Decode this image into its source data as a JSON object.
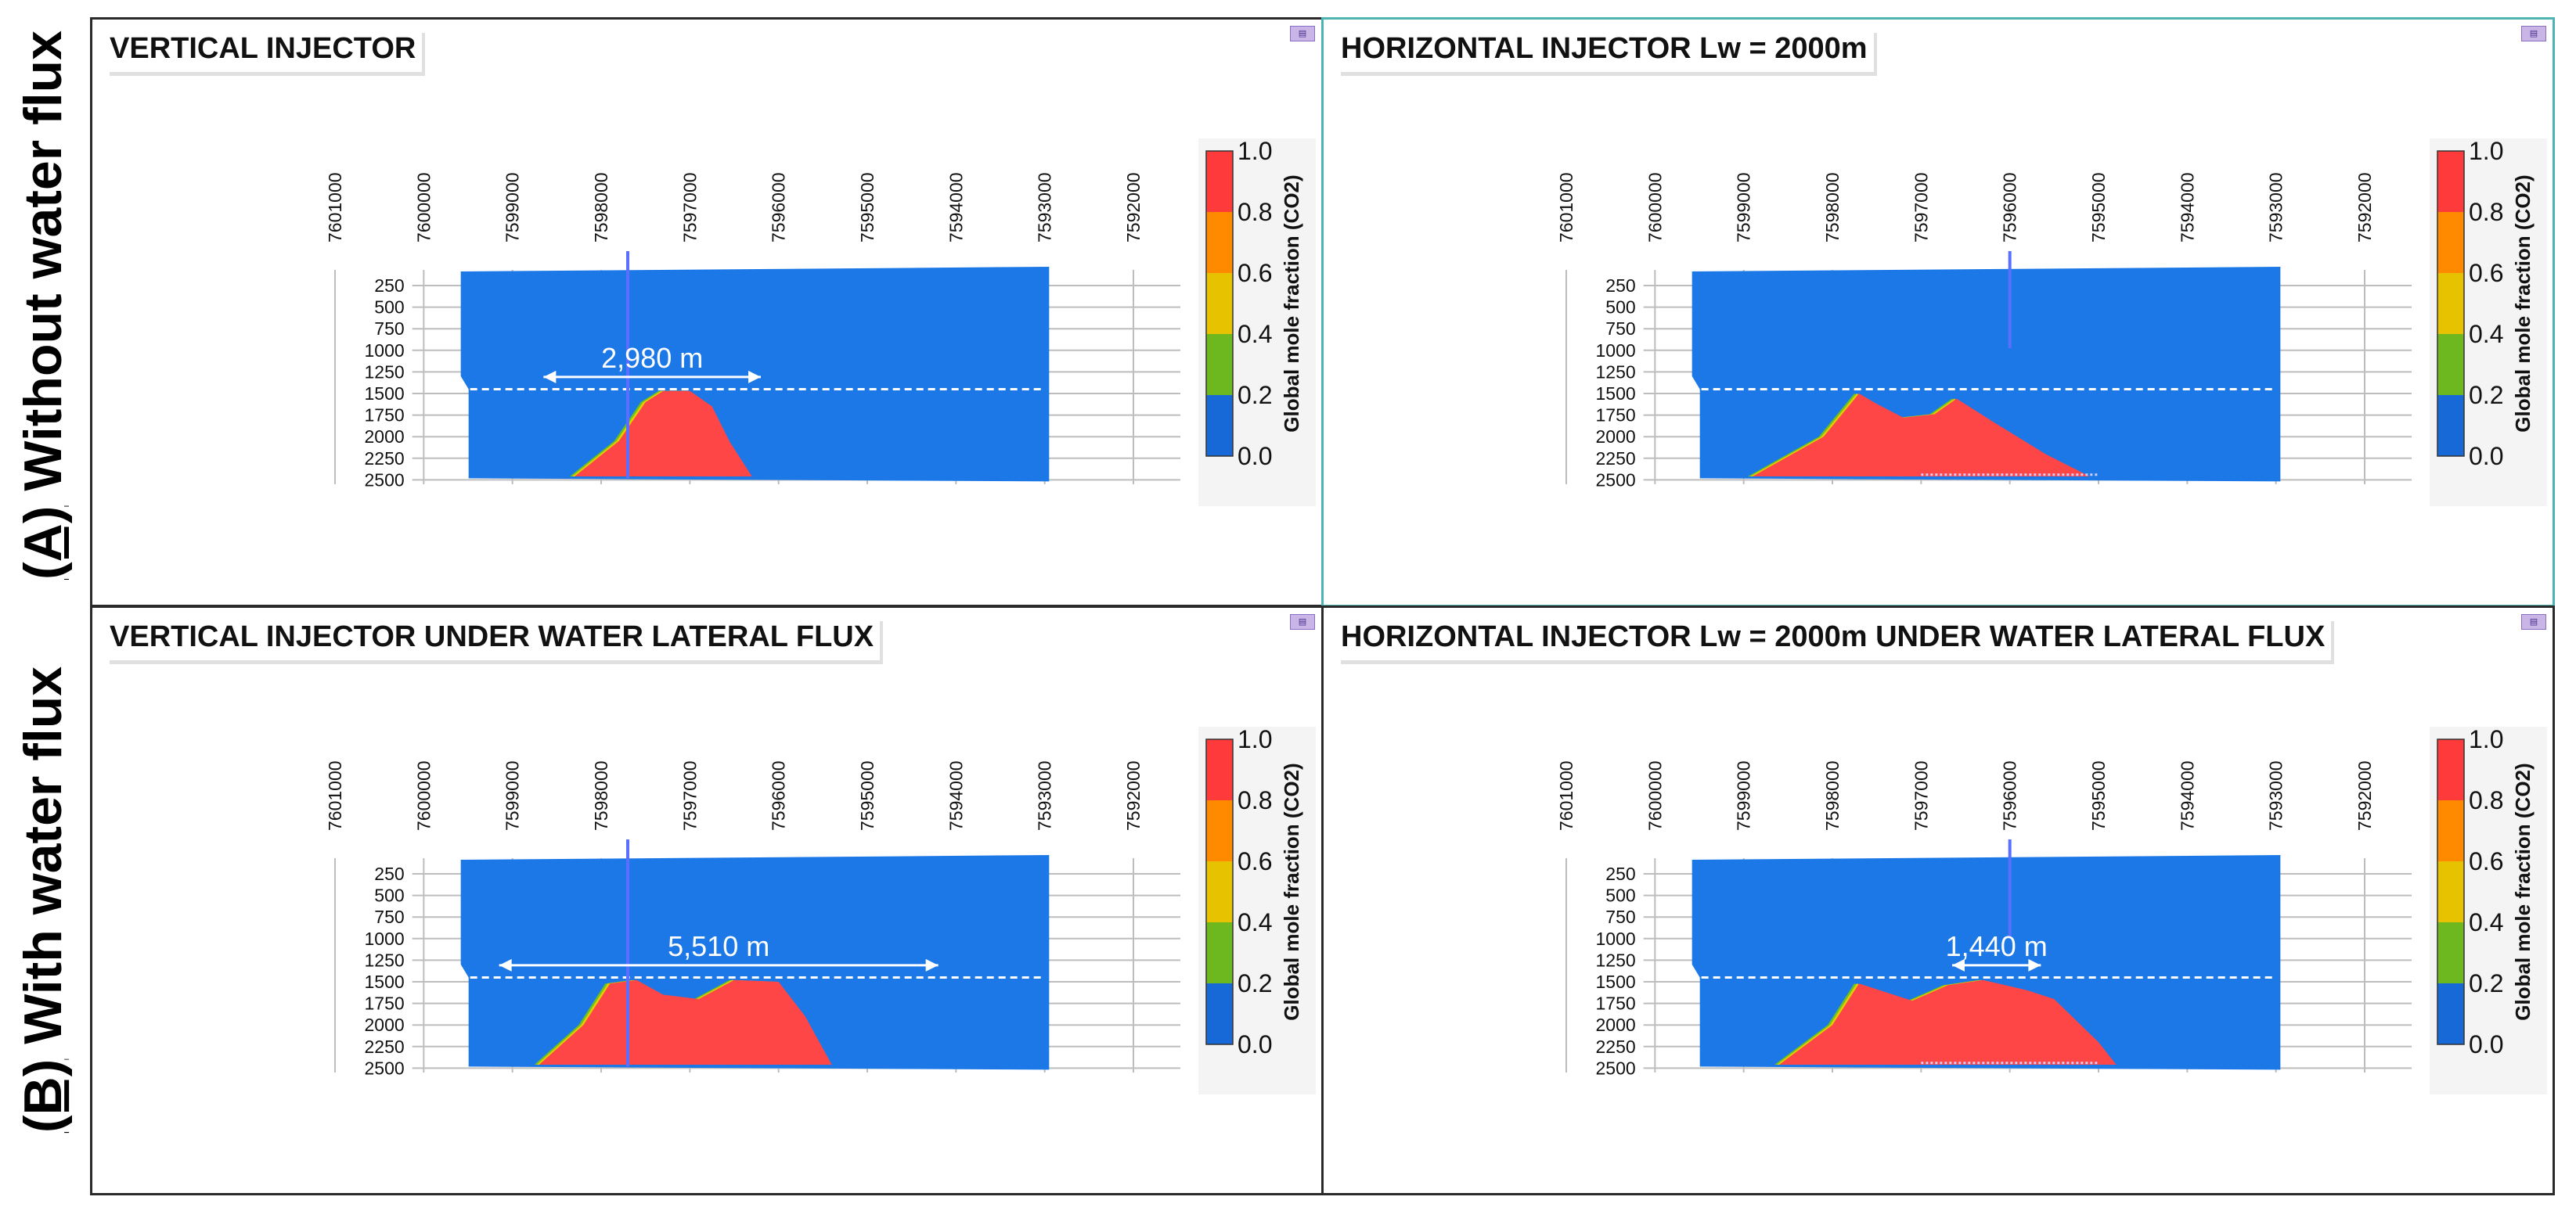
{
  "row_labels": [
    {
      "prefix": "(A)",
      "text": " Without water flux"
    },
    {
      "prefix": "(B)",
      "text": " With water flux"
    }
  ],
  "colorbar": {
    "label": "Global mole fraction (CO2)",
    "ticks": [
      "1.0",
      "0.8",
      "0.6",
      "0.4",
      "0.2",
      "0.0"
    ],
    "colors": [
      "#ff3a3a",
      "#ff8a00",
      "#e6c200",
      "#6db81e",
      "#1669d6"
    ]
  },
  "colors": {
    "water": "#1c78e6",
    "plume": "#ff4646",
    "fringe_yellow": "#e0d000",
    "fringe_green": "#6dc020",
    "injector": "#5a6fff",
    "frame": "#2a2a2a",
    "selected_frame": "#4db3b3"
  },
  "chart_data": [
    {
      "type": "heatmap",
      "title": "VERTICAL INJECTOR",
      "x_ticks": [
        "7601000",
        "7600000",
        "7599000",
        "7598000",
        "7597000",
        "7596000",
        "7595000",
        "7594000",
        "7593000",
        "7592000"
      ],
      "x_range": [
        7601000,
        7592000
      ],
      "y_ticks": [
        "250",
        "500",
        "750",
        "1000",
        "1250",
        "1500",
        "1750",
        "2000",
        "2250",
        "2500"
      ],
      "y_range": [
        0,
        2500
      ],
      "grid_x_range": [
        7599600,
        7592000
      ],
      "injector": {
        "type": "vertical",
        "x": 7597700
      },
      "caprock_depth": 1450,
      "annotation": {
        "text": "2,980 m",
        "x_from": 7598650,
        "x_to": 7596200,
        "depth": 1200
      },
      "plume_profile": {
        "x": [
          7598300,
          7597800,
          7597500,
          7597300,
          7597000,
          7596750,
          7596550,
          7596300
        ],
        "top_depth": [
          2460,
          2050,
          1600,
          1470,
          1470,
          1650,
          2060,
          2460
        ]
      }
    },
    {
      "type": "heatmap",
      "title": "HORIZONTAL INJECTOR Lw = 2000m",
      "x_ticks": [
        "7601000",
        "7600000",
        "7599000",
        "7598000",
        "7597000",
        "7596000",
        "7595000",
        "7594000",
        "7593000",
        "7592000"
      ],
      "x_range": [
        7601000,
        7592000
      ],
      "y_ticks": [
        "250",
        "500",
        "750",
        "1000",
        "1250",
        "1500",
        "1750",
        "2000",
        "2250",
        "2500"
      ],
      "y_range": [
        0,
        2500
      ],
      "grid_x_range": [
        7599600,
        7592000
      ],
      "injector": {
        "type": "horizontal",
        "x": 7596000
      },
      "caprock_depth": 1450,
      "plume_profile": {
        "x": [
          7598900,
          7598100,
          7597700,
          7597500,
          7597200,
          7596850,
          7596600,
          7596200,
          7595600,
          7595100
        ],
        "top_depth": [
          2460,
          2000,
          1500,
          1620,
          1780,
          1740,
          1560,
          1820,
          2200,
          2460
        ]
      }
    },
    {
      "type": "heatmap",
      "title": "VERTICAL INJECTOR UNDER WATER  LATERAL FLUX",
      "x_ticks": [
        "7601000",
        "7600000",
        "7599000",
        "7598000",
        "7597000",
        "7596000",
        "7595000",
        "7594000",
        "7593000",
        "7592000"
      ],
      "x_range": [
        7601000,
        7592000
      ],
      "y_ticks": [
        "250",
        "500",
        "750",
        "1000",
        "1250",
        "1500",
        "1750",
        "2000",
        "2250",
        "2500"
      ],
      "y_range": [
        0,
        2500
      ],
      "grid_x_range": [
        7599600,
        7592000
      ],
      "injector": {
        "type": "vertical",
        "x": 7597700
      },
      "caprock_depth": 1450,
      "annotation": {
        "text": "5,510 m",
        "x_from": 7599150,
        "x_to": 7594200,
        "depth": 1200
      },
      "plume_profile": {
        "x": [
          7598700,
          7598200,
          7597900,
          7597600,
          7597300,
          7596900,
          7596500,
          7596000,
          7595700,
          7595400
        ],
        "top_depth": [
          2460,
          2000,
          1520,
          1480,
          1650,
          1700,
          1480,
          1500,
          1900,
          2460
        ]
      }
    },
    {
      "type": "heatmap",
      "title": "HORIZONTAL INJECTOR Lw = 2000m UNDER WATER LATERAL FLUX",
      "x_ticks": [
        "7601000",
        "7600000",
        "7599000",
        "7598000",
        "7597000",
        "7596000",
        "7595000",
        "7594000",
        "7593000",
        "7592000"
      ],
      "x_range": [
        7601000,
        7592000
      ],
      "y_ticks": [
        "250",
        "500",
        "750",
        "1000",
        "1250",
        "1500",
        "1750",
        "2000",
        "2250",
        "2500"
      ],
      "y_range": [
        0,
        2500
      ],
      "grid_x_range": [
        7599600,
        7592000
      ],
      "injector": {
        "type": "horizontal",
        "x": 7596000
      },
      "caprock_depth": 1450,
      "annotation": {
        "text": "1,440 m",
        "x_from": 7596650,
        "x_to": 7595650,
        "depth": 1200
      },
      "plume_profile": {
        "x": [
          7598600,
          7598000,
          7597700,
          7597400,
          7597100,
          7596700,
          7596300,
          7595800,
          7595500,
          7595000,
          7594800
        ],
        "top_depth": [
          2460,
          2000,
          1520,
          1620,
          1720,
          1540,
          1480,
          1600,
          1700,
          2200,
          2460
        ]
      }
    }
  ]
}
